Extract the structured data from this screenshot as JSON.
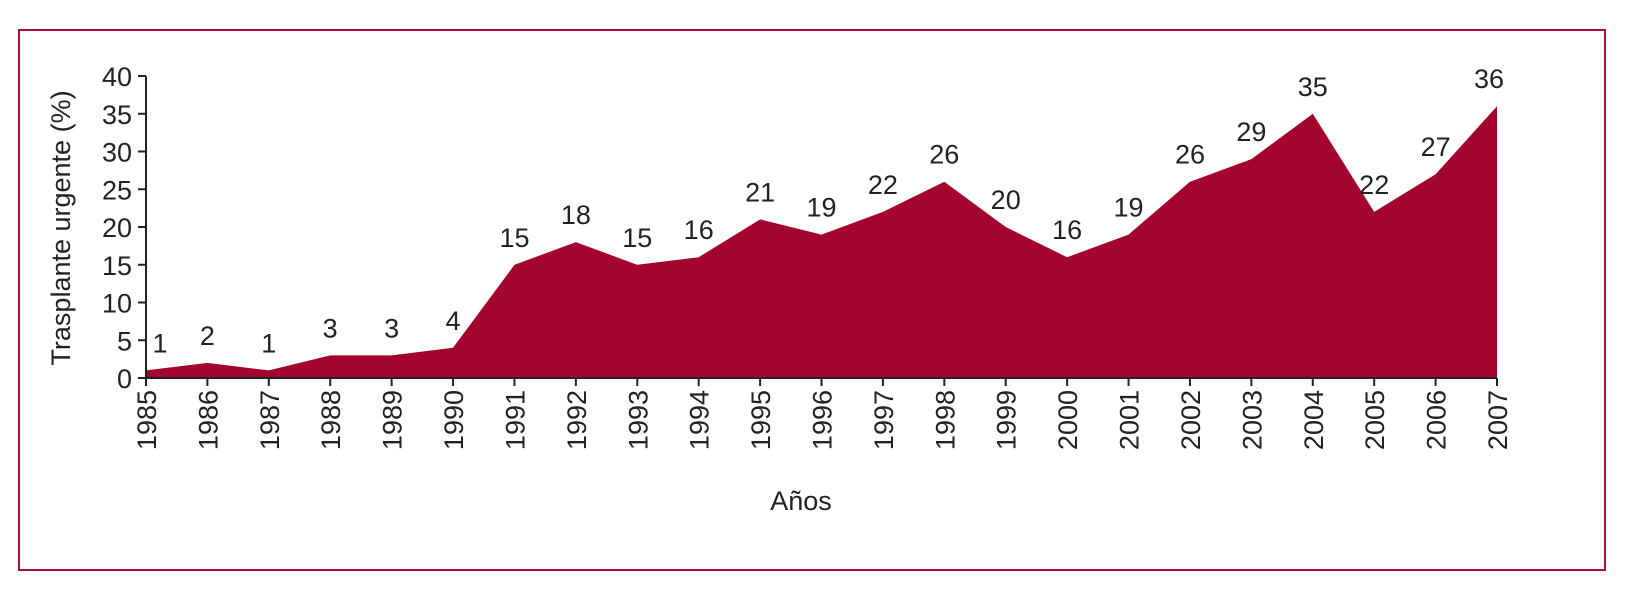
{
  "chart_data": {
    "type": "area",
    "x": [
      "1985",
      "1986",
      "1987",
      "1988",
      "1989",
      "1990",
      "1991",
      "1992",
      "1993",
      "1994",
      "1995",
      "1996",
      "1997",
      "1998",
      "1999",
      "2000",
      "2001",
      "2002",
      "2003",
      "2004",
      "2005",
      "2006",
      "2007"
    ],
    "series": [
      {
        "values": [
          1,
          2,
          1,
          3,
          3,
          4,
          15,
          18,
          15,
          16,
          21,
          19,
          22,
          26,
          20,
          16,
          19,
          26,
          29,
          35,
          22,
          27,
          36
        ]
      }
    ],
    "data_labels": [
      "1",
      "2",
      "1",
      "3",
      "3",
      "4",
      "15",
      "18",
      "15",
      "16",
      "21",
      "19",
      "22",
      "26",
      "20",
      "16",
      "19",
      "26",
      "29",
      "35",
      "22",
      "27",
      "36"
    ],
    "xlabel": "Años",
    "ylabel": "Trasplante urgente (%)",
    "ylim": [
      0,
      40
    ],
    "yticks": [
      "0",
      "5",
      "10",
      "15",
      "20",
      "25",
      "30",
      "35",
      "40"
    ],
    "grid": false,
    "legend": "none",
    "colors": {
      "fill": "#a3052f",
      "frame": "#a3103a",
      "axis": "#222222"
    }
  }
}
